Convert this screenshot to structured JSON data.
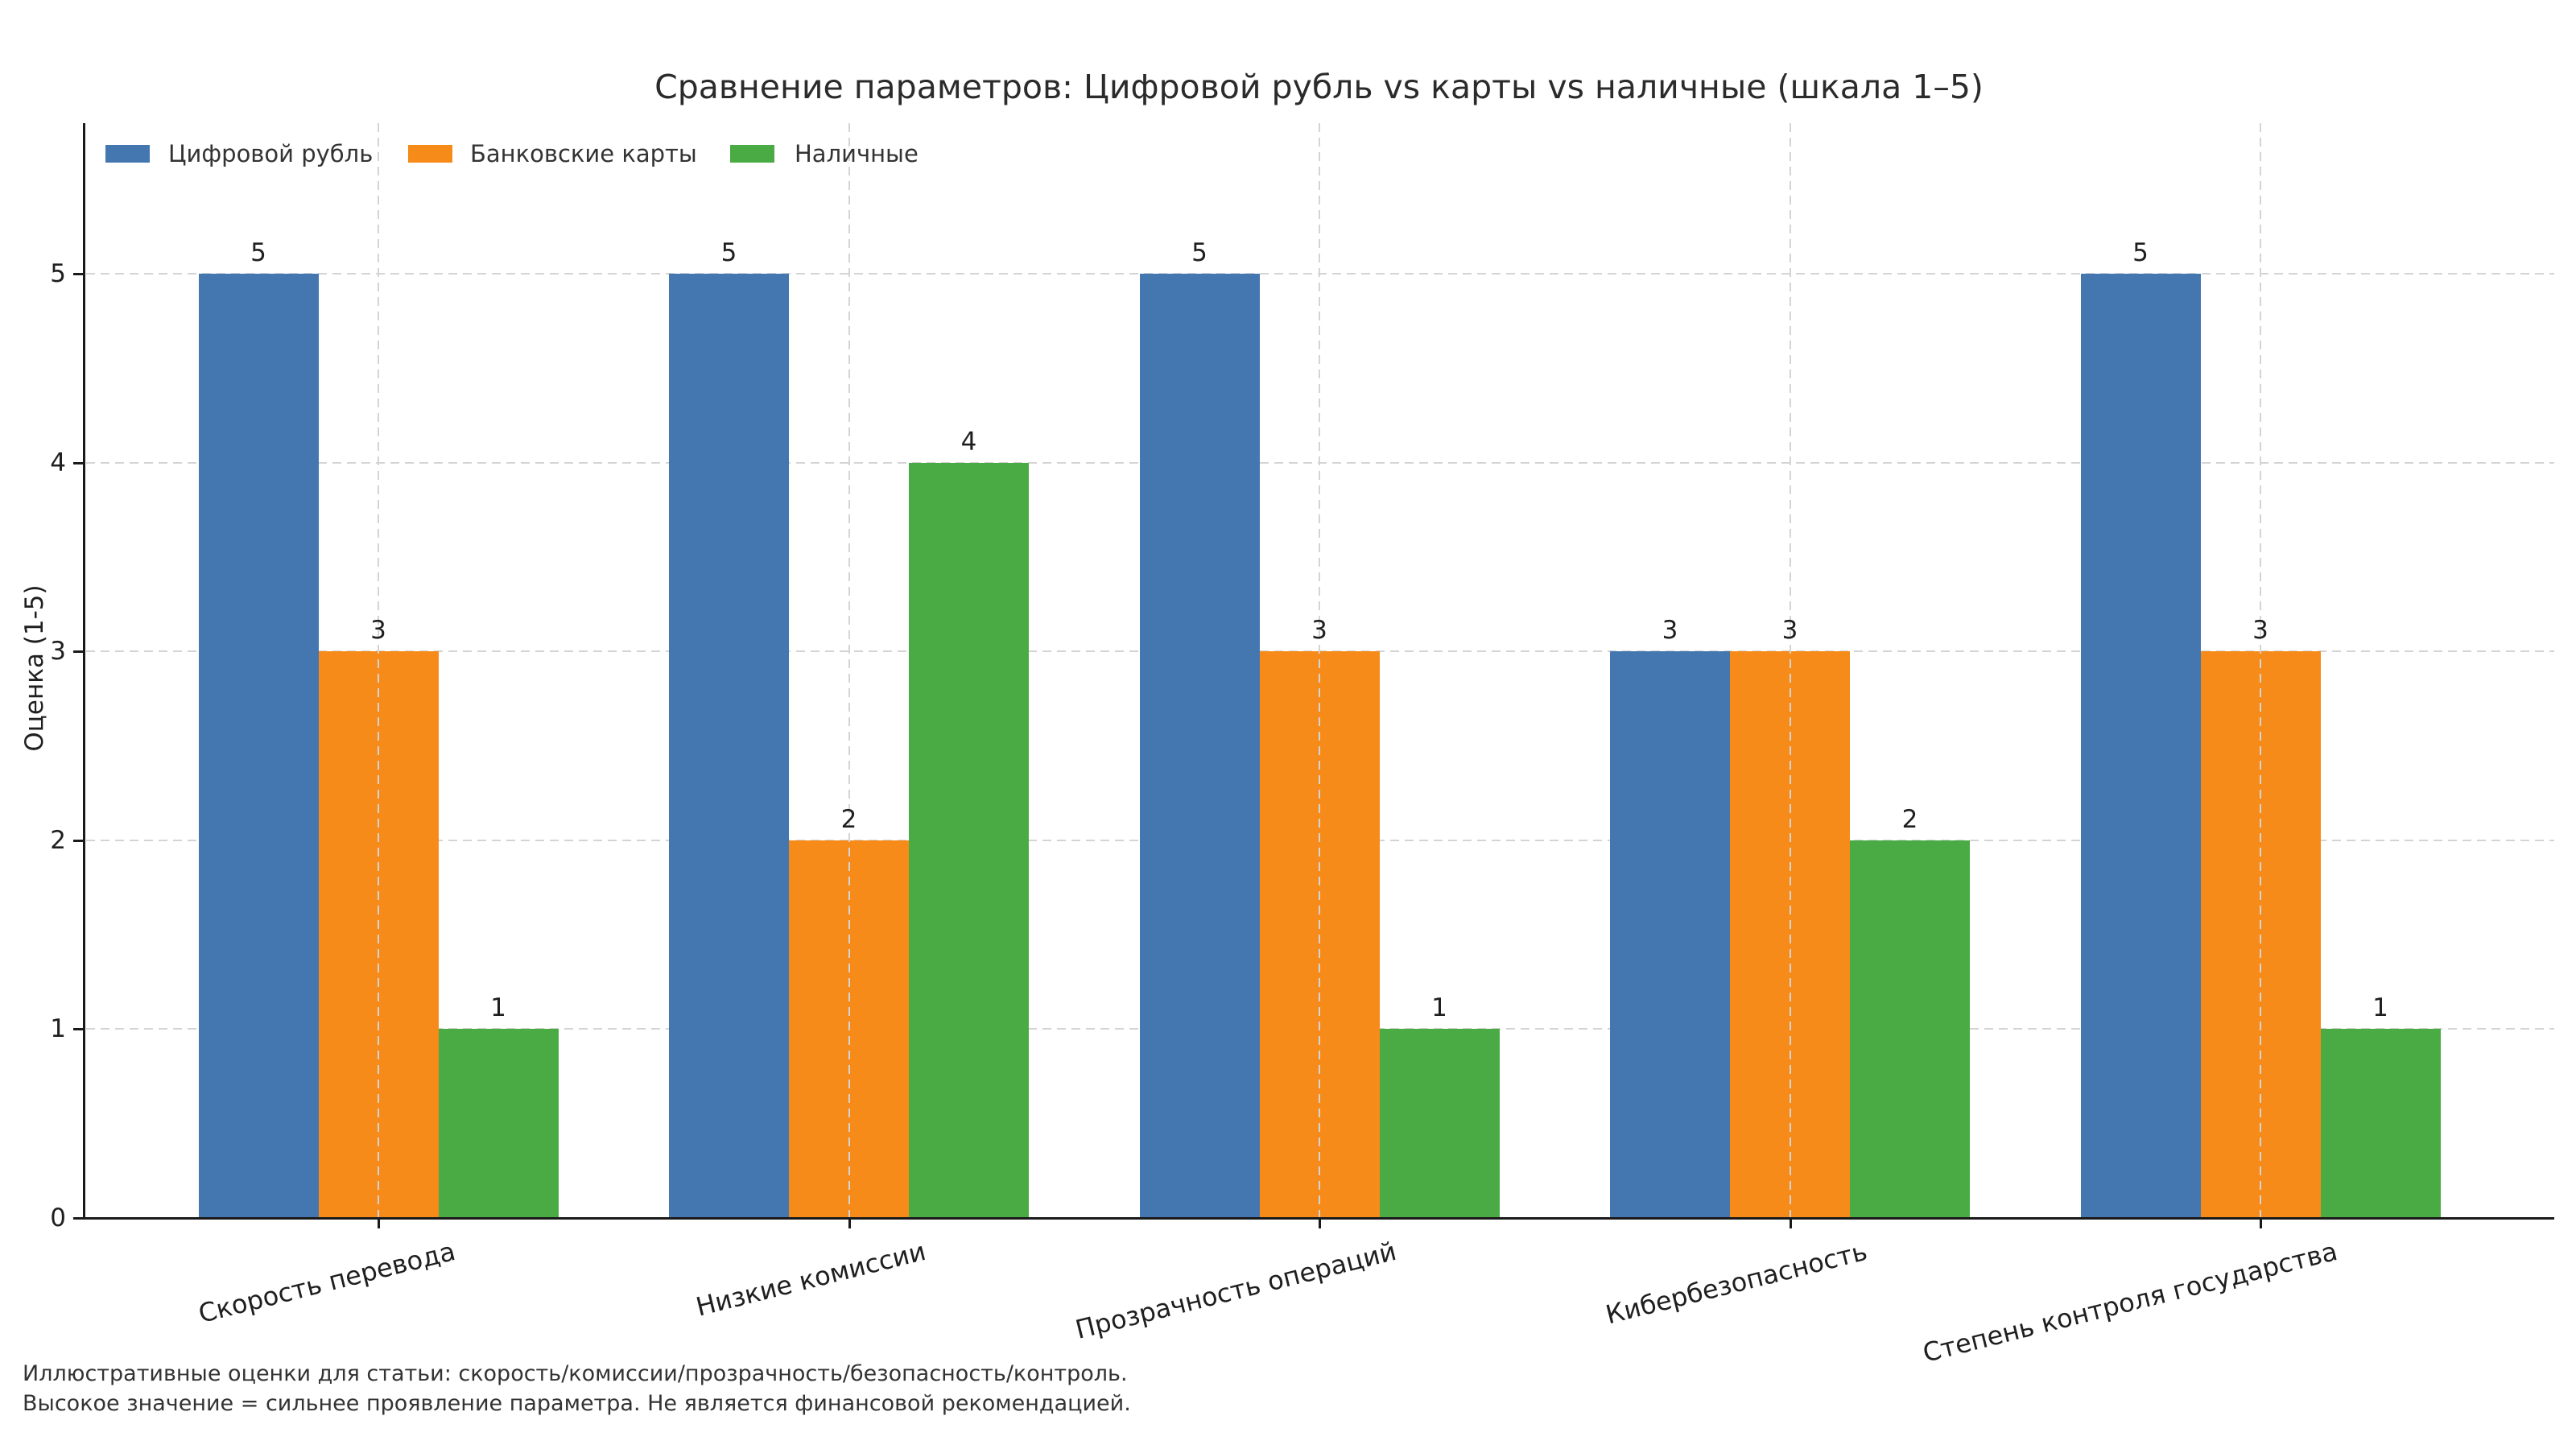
{
  "title": "Сравнение параметров: Цифровой рубль vs карты vs наличные (шкала 1–5)",
  "ylabel": "Оценка (1-5)",
  "footnotes": [
    "Иллюстративные оценки для статьи: скорость/комиссии/прозрачность/безопасность/контроль.",
    "Высокое значение = сильнее проявление параметра. Не является финансовой рекомендацией."
  ],
  "colors": {
    "digital_ruble": "#4477b0",
    "bank_cards": "#f68b1a",
    "cash": "#4aab44",
    "grid": "#d4d4d4",
    "axis": "#1a1a1a",
    "text": "#1f1f1f"
  },
  "chart_data": {
    "type": "bar",
    "categories": [
      "Скорость перевода",
      "Низкие комиссии",
      "Прозрачность операций",
      "Кибербезопасность",
      "Степень контроля государства"
    ],
    "series": [
      {
        "name": "Цифровой рубль",
        "color": "#4477b0",
        "values": [
          5,
          5,
          5,
          3,
          5
        ]
      },
      {
        "name": "Банковские карты",
        "color": "#f68b1a",
        "values": [
          3,
          2,
          3,
          3,
          3
        ]
      },
      {
        "name": "Наличные",
        "color": "#4aab44",
        "values": [
          1,
          4,
          1,
          2,
          1
        ]
      }
    ],
    "title": "Сравнение параметров: Цифровой рубль vs карты vs наличные (шкала 1–5)",
    "xlabel": "",
    "ylabel": "Оценка (1-5)",
    "ylim": [
      0,
      5.8
    ],
    "yticks": [
      0,
      1,
      2,
      3,
      4,
      5
    ],
    "grid": true,
    "grid_style": "dashed",
    "bar_value_labels": true,
    "legend_position": "upper left",
    "legend_orientation": "horizontal"
  }
}
